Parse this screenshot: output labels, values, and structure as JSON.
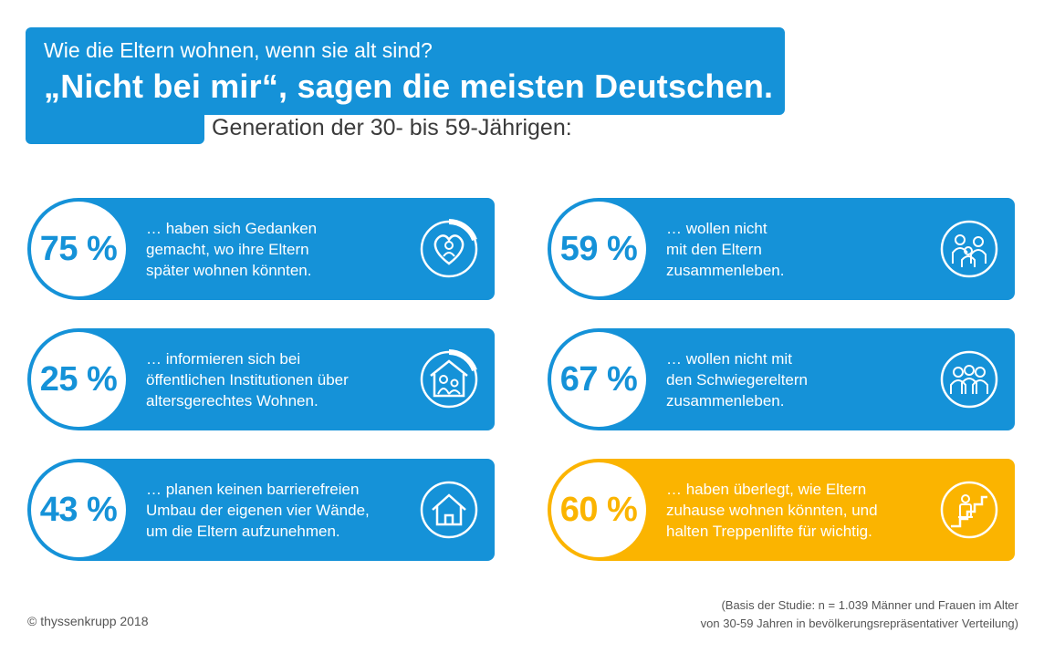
{
  "header": {
    "subtitle": "Wie die Eltern wohnen, wenn sie alt sind?",
    "title": "„Nicht bei mir“, sagen die meisten Deutschen.",
    "generation": "Generation der 30- bis 59-Jährigen:"
  },
  "cards": [
    {
      "percent": "75 %",
      "line1": "… haben sich Gedanken",
      "line2": "gemacht, wo ihre Eltern",
      "line3": "später wohnen könnten.",
      "icon": "heart-person-icon",
      "color": "#1592d8"
    },
    {
      "percent": "25 %",
      "line1": "… informieren sich bei",
      "line2": "öffentlichen Institutionen über",
      "line3": "altersgerechtes Wohnen.",
      "icon": "house-family-icon",
      "color": "#1592d8"
    },
    {
      "percent": "43 %",
      "line1": "… planen keinen barrierefreien",
      "line2": "Umbau der eigenen vier Wände,",
      "line3": "um die Eltern aufzunehmen.",
      "icon": "house-icon",
      "color": "#1592d8"
    },
    {
      "percent": "59 %",
      "line1": "… wollen nicht",
      "line2": "mit den Eltern",
      "line3": "zusammenleben.",
      "icon": "family-icon",
      "color": "#1592d8"
    },
    {
      "percent": "67 %",
      "line1": "… wollen nicht mit",
      "line2": "den Schwiegereltern",
      "line3": "zusammenleben.",
      "icon": "group-icon",
      "color": "#1592d8"
    },
    {
      "percent": "60 %",
      "line1": "… haben überlegt, wie Eltern",
      "line2": "zuhause wohnen könnten, und",
      "line3": "halten Treppenlifte für wichtig.",
      "icon": "stairlift-icon",
      "color": "#fbb400"
    }
  ],
  "footer": {
    "copyright": "© thyssenkrupp 2018",
    "basis_line1": "(Basis der Studie: n = 1.039 Männer und Frauen im Alter",
    "basis_line2": "von 30-59 Jahren in bevölkerungsrepräsentativer Verteilung)"
  }
}
